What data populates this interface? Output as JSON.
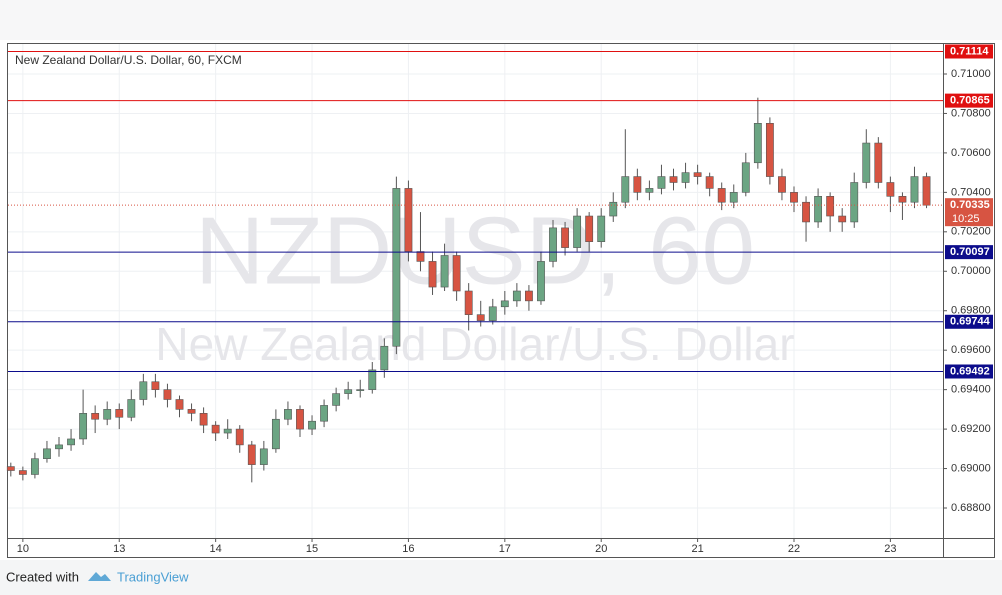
{
  "chart_data": {
    "type": "candlestick",
    "title": "New Zealand Dollar/U.S. Dollar, 60, FXCM",
    "watermark": {
      "symbol": "NZDUSD, 60",
      "description": "New Zealand Dollar/U.S. Dollar"
    },
    "xlim": [
      -3.7,
      229.1
    ],
    "xticks": [
      {
        "value": 0,
        "label": "10"
      },
      {
        "value": 24,
        "label": "13"
      },
      {
        "value": 48,
        "label": "14"
      },
      {
        "value": 72,
        "label": "15"
      },
      {
        "value": 96,
        "label": "16"
      },
      {
        "value": 120,
        "label": "17"
      },
      {
        "value": 144,
        "label": "20"
      },
      {
        "value": 168,
        "label": "21"
      },
      {
        "value": 192,
        "label": "22"
      },
      {
        "value": 216,
        "label": "23"
      }
    ],
    "ylim": [
      0.68648,
      0.71152
    ],
    "yticks": [
      {
        "value": 0.688,
        "label": "0.68800"
      },
      {
        "value": 0.69,
        "label": "0.69000"
      },
      {
        "value": 0.692,
        "label": "0.69200"
      },
      {
        "value": 0.694,
        "label": "0.69400"
      },
      {
        "value": 0.696,
        "label": "0.69600"
      },
      {
        "value": 0.698,
        "label": "0.69800"
      },
      {
        "value": 0.7,
        "label": "0.70000"
      },
      {
        "value": 0.702,
        "label": "0.70200"
      },
      {
        "value": 0.704,
        "label": "0.70400"
      },
      {
        "value": 0.706,
        "label": "0.70600"
      },
      {
        "value": 0.708,
        "label": "0.70800"
      },
      {
        "value": 0.71,
        "label": "0.71000"
      }
    ],
    "grid": true,
    "up_color": "#6ba583",
    "down_color": "#d75442",
    "x": [
      -3,
      0,
      3,
      6,
      9,
      12,
      15,
      18,
      21,
      24,
      27,
      30,
      33,
      36,
      39,
      42,
      45,
      48,
      51,
      54,
      57,
      60,
      63,
      66,
      69,
      72,
      75,
      78,
      81,
      84,
      87,
      90,
      93,
      96,
      99,
      102,
      105,
      108,
      111,
      114,
      117,
      120,
      123,
      126,
      129,
      132,
      135,
      138,
      141,
      144,
      147,
      150,
      153,
      156,
      159,
      162,
      165,
      168,
      171,
      174,
      177,
      180,
      183,
      186,
      189,
      192,
      195,
      198,
      201,
      204,
      207,
      210,
      213,
      216,
      219,
      222,
      225
    ],
    "open": [
      0.6901,
      0.6899,
      0.6897,
      0.6905,
      0.691,
      0.6912,
      0.6915,
      0.6928,
      0.6925,
      0.693,
      0.6926,
      0.6935,
      0.6944,
      0.694,
      0.6935,
      0.693,
      0.6928,
      0.6922,
      0.6918,
      0.692,
      0.6912,
      0.6902,
      0.691,
      0.6925,
      0.693,
      0.692,
      0.6924,
      0.6932,
      0.6938,
      0.694,
      0.694,
      0.695,
      0.6962,
      0.7042,
      0.701,
      0.7005,
      0.6992,
      0.7008,
      0.699,
      0.6978,
      0.6975,
      0.6982,
      0.6985,
      0.699,
      0.6985,
      0.7005,
      0.7022,
      0.7012,
      0.7028,
      0.7015,
      0.7028,
      0.7035,
      0.7048,
      0.704,
      0.7042,
      0.7048,
      0.7045,
      0.705,
      0.7048,
      0.7042,
      0.7035,
      0.704,
      0.7055,
      0.7075,
      0.7048,
      0.704,
      0.7035,
      0.7025,
      0.7038,
      0.7028,
      0.7025,
      0.7045,
      0.7065,
      0.7045,
      0.7038,
      0.7035,
      0.7048
    ],
    "high": [
      0.6903,
      0.6901,
      0.6908,
      0.6914,
      0.6916,
      0.692,
      0.694,
      0.6932,
      0.6934,
      0.6933,
      0.694,
      0.6948,
      0.6948,
      0.6943,
      0.6937,
      0.6933,
      0.6931,
      0.6924,
      0.6925,
      0.6922,
      0.6914,
      0.6914,
      0.693,
      0.6934,
      0.6932,
      0.6927,
      0.6935,
      0.6941,
      0.6944,
      0.6945,
      0.6954,
      0.6966,
      0.7048,
      0.7046,
      0.703,
      0.701,
      0.7014,
      0.701,
      0.6994,
      0.6985,
      0.6986,
      0.699,
      0.6994,
      0.6993,
      0.701,
      0.7026,
      0.7025,
      0.7032,
      0.703,
      0.7032,
      0.704,
      0.7072,
      0.7052,
      0.7046,
      0.7054,
      0.7052,
      0.7055,
      0.7054,
      0.705,
      0.7045,
      0.7044,
      0.706,
      0.7088,
      0.7078,
      0.7052,
      0.7043,
      0.7038,
      0.7042,
      0.704,
      0.7032,
      0.705,
      0.7072,
      0.7068,
      0.7048,
      0.704,
      0.7053,
      0.705
    ],
    "low": [
      0.6896,
      0.6894,
      0.6895,
      0.6903,
      0.6906,
      0.6909,
      0.6912,
      0.6918,
      0.6922,
      0.692,
      0.6924,
      0.6932,
      0.6936,
      0.6931,
      0.6926,
      0.6924,
      0.6918,
      0.6914,
      0.6915,
      0.6908,
      0.6893,
      0.6899,
      0.6908,
      0.6922,
      0.6916,
      0.6917,
      0.6921,
      0.6929,
      0.6935,
      0.6936,
      0.6938,
      0.6946,
      0.6958,
      0.7005,
      0.7,
      0.6988,
      0.699,
      0.6985,
      0.697,
      0.6972,
      0.6973,
      0.6978,
      0.6982,
      0.698,
      0.6983,
      0.7002,
      0.7008,
      0.701,
      0.701,
      0.7012,
      0.7025,
      0.7032,
      0.7036,
      0.7036,
      0.7039,
      0.7041,
      0.7042,
      0.7044,
      0.7038,
      0.7031,
      0.7032,
      0.7038,
      0.7052,
      0.7044,
      0.7036,
      0.703,
      0.7015,
      0.7022,
      0.702,
      0.702,
      0.7022,
      0.7042,
      0.7042,
      0.703,
      0.7026,
      0.7032,
      0.7032
    ],
    "close": [
      0.6899,
      0.6897,
      0.6905,
      0.691,
      0.6912,
      0.6915,
      0.6928,
      0.6925,
      0.693,
      0.6926,
      0.6935,
      0.6944,
      0.694,
      0.6935,
      0.693,
      0.6928,
      0.6922,
      0.6918,
      0.692,
      0.6912,
      0.6902,
      0.691,
      0.6925,
      0.693,
      0.692,
      0.6924,
      0.6932,
      0.6938,
      0.694,
      0.694,
      0.695,
      0.6962,
      0.7042,
      0.701,
      0.7005,
      0.6992,
      0.7008,
      0.699,
      0.6978,
      0.6975,
      0.6982,
      0.6985,
      0.699,
      0.6985,
      0.7005,
      0.7022,
      0.7012,
      0.7028,
      0.7015,
      0.7028,
      0.7035,
      0.7048,
      0.704,
      0.7042,
      0.7048,
      0.7045,
      0.705,
      0.7048,
      0.7042,
      0.7035,
      0.704,
      0.7055,
      0.7075,
      0.7048,
      0.704,
      0.7035,
      0.7025,
      0.7038,
      0.7028,
      0.7025,
      0.7045,
      0.7065,
      0.7045,
      0.7038,
      0.7035,
      0.7048,
      0.70335
    ],
    "levels": [
      {
        "value": 0.71114,
        "color": "#e01010"
      },
      {
        "value": 0.70865,
        "color": "#e01010"
      },
      {
        "value": 0.70097,
        "color": "#0c0c8c"
      },
      {
        "value": 0.69744,
        "color": "#0c0c8c"
      },
      {
        "value": 0.69492,
        "color": "#0c0c8c"
      }
    ],
    "last_price": {
      "value": 0.70335,
      "countdown": "10:25",
      "color": "#d75442"
    },
    "footer": {
      "created_with": "Created with",
      "brand": "TradingView"
    }
  }
}
